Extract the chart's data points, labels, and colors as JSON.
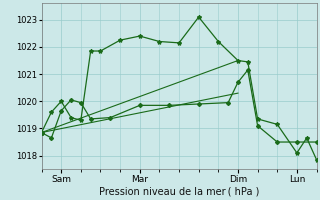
{
  "bg_color": "#cce8e8",
  "grid_color": "#99cccc",
  "line_color": "#1a6b1a",
  "xlabel": "Pression niveau de la mer ( hPa )",
  "ylim": [
    1017.5,
    1023.6
  ],
  "yticks": [
    1018,
    1019,
    1020,
    1021,
    1022,
    1023
  ],
  "xlim": [
    0,
    84
  ],
  "day_ticks": [
    6,
    30,
    60,
    78
  ],
  "day_labels": [
    "Sam",
    "Mar",
    "Dim",
    "Lun"
  ],
  "line1_x": [
    0,
    3,
    6,
    9,
    12,
    15,
    18,
    24,
    30,
    36,
    42,
    48,
    54,
    60,
    63,
    66,
    72,
    78,
    81,
    84
  ],
  "line1_y": [
    1018.85,
    1019.6,
    1020.0,
    1019.4,
    1019.3,
    1021.85,
    1021.85,
    1022.25,
    1022.4,
    1022.2,
    1022.15,
    1023.1,
    1022.2,
    1021.5,
    1021.45,
    1019.35,
    1019.15,
    1018.1,
    1018.65,
    1017.85
  ],
  "line2_x": [
    0,
    3,
    6,
    9,
    12,
    15,
    21,
    30,
    39,
    48,
    57,
    60,
    63,
    66,
    72,
    78,
    84
  ],
  "line2_y": [
    1018.85,
    1018.65,
    1019.65,
    1020.05,
    1019.95,
    1019.35,
    1019.4,
    1019.85,
    1019.85,
    1019.9,
    1019.95,
    1020.7,
    1021.15,
    1019.1,
    1018.5,
    1018.5,
    1018.5
  ],
  "line3_x": [
    0,
    60
  ],
  "line3_y": [
    1018.85,
    1021.5
  ],
  "line4_x": [
    0,
    60
  ],
  "line4_y": [
    1018.85,
    1020.3
  ]
}
